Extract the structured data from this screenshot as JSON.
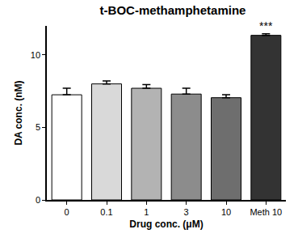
{
  "chart_data": {
    "type": "bar",
    "title": "t-BOC-methamphetamine",
    "x_label": "Drug conc. (μM)",
    "y_label": "DA conc. (nM)",
    "categories": [
      "0",
      "0.1",
      "1",
      "3",
      "10",
      "Meth 10"
    ],
    "values": [
      7.25,
      8.0,
      7.7,
      7.3,
      7.05,
      11.35
    ],
    "errors": [
      0.45,
      0.2,
      0.25,
      0.4,
      0.2,
      0.1
    ],
    "colors": [
      "#ffffff",
      "#d9d9d9",
      "#b3b3b3",
      "#8c8c8c",
      "#6e6e6e",
      "#333333"
    ],
    "ylim": [
      0,
      12
    ],
    "yticks": [
      0,
      5,
      10
    ],
    "grid": false,
    "annotations": [
      {
        "text": "***",
        "category": "Meth 10"
      }
    ]
  }
}
